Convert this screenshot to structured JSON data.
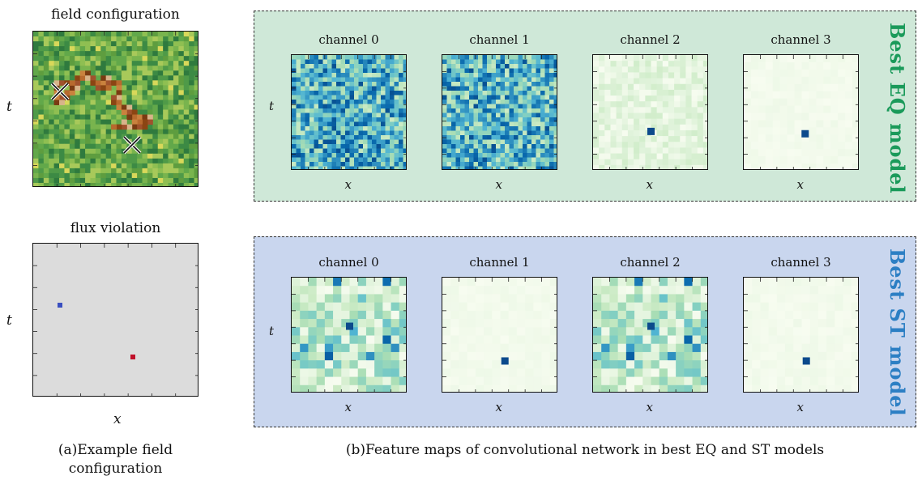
{
  "left": {
    "field_title": "field configuration",
    "flux_title": "flux violation",
    "t_label": "t",
    "x_label": "x",
    "caption_line1": "(a)Example field",
    "caption_line2": "configuration"
  },
  "right": {
    "caption": "(b)Feature maps of convolutional network in best EQ and ST models",
    "eq_panel": {
      "label": "Best EQ model",
      "accent": "#1a9a5a",
      "background": "#cfe8d8",
      "channels": [
        "channel 0",
        "channel 1",
        "channel 2",
        "channel 3"
      ]
    },
    "st_panel": {
      "label": "Best ST model",
      "accent": "#2c7fc4",
      "background": "#c9d6ee",
      "channels": [
        "channel 0",
        "channel 1",
        "channel 2",
        "channel 3"
      ]
    },
    "t_label": "t",
    "x_label": "x"
  },
  "colors": {
    "field_base": "#5fa24a",
    "flux_background": "#dcdcdc",
    "flux_source": "#3a4fc0",
    "flux_sink": "#c0102a",
    "feature_dark": "#0c4a8c",
    "feature_light": "#f4faee"
  }
}
